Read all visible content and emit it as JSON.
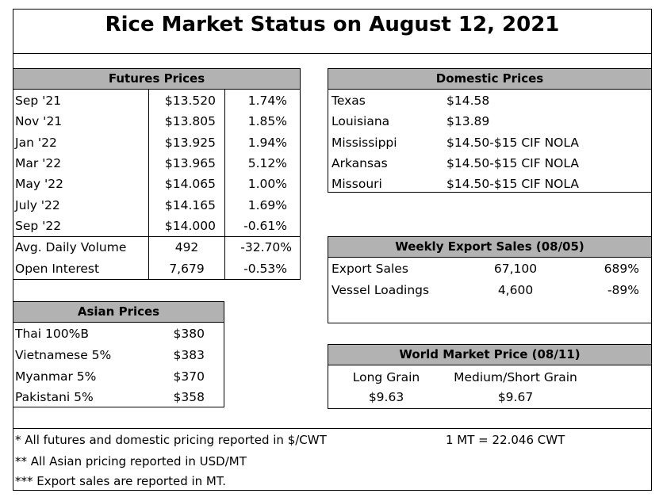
{
  "title": "Rice Market Status on August 12, 2021",
  "futures": {
    "header": "Futures Prices",
    "rows": [
      {
        "month": "Sep '21",
        "price": "$13.520",
        "change": "1.74%"
      },
      {
        "month": "Nov '21",
        "price": "$13.805",
        "change": "1.85%"
      },
      {
        "month": "Jan '22",
        "price": "$13.925",
        "change": "1.94%"
      },
      {
        "month": "Mar '22",
        "price": "$13.965",
        "change": "5.12%"
      },
      {
        "month": "May '22",
        "price": "$14.065",
        "change": "1.00%"
      },
      {
        "month": "July '22",
        "price": "$14.165",
        "change": "1.69%"
      },
      {
        "month": "Sep '22",
        "price": "$14.000",
        "change": "-0.61%"
      }
    ],
    "volume": {
      "label": "Avg. Daily Volume",
      "value": "492",
      "change": "-32.70%"
    },
    "open_interest": {
      "label": "Open Interest",
      "value": "7,679",
      "change": "-0.53%"
    }
  },
  "domestic": {
    "header": "Domestic Prices",
    "rows": [
      {
        "state": "Texas",
        "price": "$14.58"
      },
      {
        "state": "Louisiana",
        "price": "$13.89"
      },
      {
        "state": "Mississippi",
        "price": "$14.50-$15 CIF NOLA"
      },
      {
        "state": "Arkansas",
        "price": "$14.50-$15 CIF NOLA"
      },
      {
        "state": "Missouri",
        "price": "$14.50-$15 CIF NOLA"
      }
    ]
  },
  "exports": {
    "header": "Weekly Export Sales (08/05)",
    "rows": [
      {
        "label": "Export Sales",
        "value": "67,100",
        "change": "689%"
      },
      {
        "label": "Vessel Loadings",
        "value": "4,600",
        "change": "-89%"
      }
    ]
  },
  "asian": {
    "header": "Asian Prices",
    "rows": [
      {
        "label": "Thai 100%B",
        "price": "$380"
      },
      {
        "label": "Vietnamese 5%",
        "price": "$383"
      },
      {
        "label": "Myanmar 5%",
        "price": "$370"
      },
      {
        "label": "Pakistani 5%",
        "price": "$358"
      }
    ]
  },
  "world": {
    "header": "World Market Price (08/11)",
    "long_label": "Long Grain",
    "long_price": "$9.63",
    "medium_label": "Medium/Short Grain",
    "medium_price": "$9.67"
  },
  "notes": {
    "note1": "* All futures and domestic pricing reported in $/CWT",
    "conversion": "1 MT = 22.046 CWT",
    "note2": "** All Asian pricing reported in USD/MT",
    "note3": "*** Export sales are reported in MT."
  }
}
